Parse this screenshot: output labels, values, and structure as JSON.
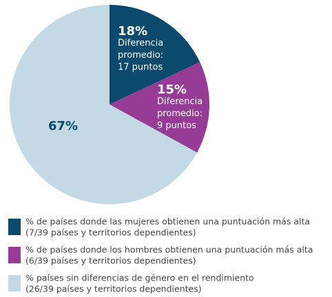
{
  "chart_data": {
    "type": "pie",
    "categories": [
      "% de países donde las mujeres obtienen una puntuación más alta",
      "% de países donde los hombres obtienen una puntuación más alta",
      "% países sin diferencias de género en el rendimiento"
    ],
    "category_details": [
      "(7/39 países y territorios dependientes)",
      "(6/39 países y territorios dependientes)",
      "(26/39 países y territorios dependientes)"
    ],
    "values": [
      18,
      15,
      67
    ],
    "value_labels": [
      "18%",
      "15%",
      "67%"
    ],
    "notes": [
      [
        "Diferencia",
        "promedio:",
        "17 puntos"
      ],
      [
        "Diferencia",
        "promedio:",
        "9 puntos"
      ],
      null
    ],
    "colors": [
      "#0b4a6c",
      "#963c96",
      "#c3d9e6"
    ]
  }
}
